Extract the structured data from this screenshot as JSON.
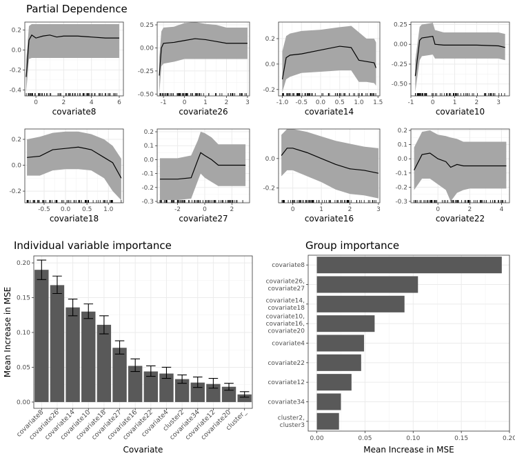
{
  "pd_title": "Partial Dependence",
  "imp_title": "Individual variable importance",
  "grp_title": "Group importance",
  "chart_data": [
    {
      "type": "line",
      "title": "Partial Dependence",
      "panels": [
        {
          "xlabel": "covariate8",
          "xlim": [
            -0.8,
            6.3
          ],
          "ylim": [
            -0.46,
            0.28
          ],
          "xticks": [
            0,
            2,
            4,
            6
          ],
          "xtick_labels": [
            "0",
            "2",
            "4",
            "6"
          ],
          "yticks": [
            -0.4,
            -0.2,
            0.0,
            0.2
          ],
          "ytick_labels": [
            "-0.4",
            "-0.2",
            "0.0",
            "0.2"
          ],
          "x": [
            -0.7,
            -0.5,
            -0.3,
            0,
            0.5,
            1,
            1.5,
            2,
            3,
            4,
            5,
            6
          ],
          "y": [
            -0.27,
            0.1,
            0.15,
            0.12,
            0.14,
            0.15,
            0.13,
            0.14,
            0.14,
            0.13,
            0.12,
            0.12
          ],
          "lower": [
            -0.42,
            -0.09,
            -0.08,
            -0.08,
            -0.08,
            -0.08,
            -0.08,
            -0.08,
            -0.08,
            -0.08,
            -0.08,
            -0.08
          ],
          "upper": [
            -0.1,
            0.24,
            0.26,
            0.26,
            0.26,
            0.26,
            0.26,
            0.26,
            0.26,
            0.26,
            0.26,
            0.26
          ]
        },
        {
          "xlabel": "covariate26",
          "xlim": [
            -1.3,
            3.1
          ],
          "ylim": [
            -0.52,
            0.28
          ],
          "xticks": [
            -1,
            0,
            1,
            2,
            3
          ],
          "xtick_labels": [
            "-1",
            "0",
            "1",
            "2",
            "3"
          ],
          "yticks": [
            -0.5,
            -0.25,
            0.0,
            0.25
          ],
          "ytick_labels": [
            "-0.50",
            "-0.25",
            "0.00",
            "0.25"
          ],
          "x": [
            -1.2,
            -1.1,
            -1,
            -0.5,
            0,
            0.5,
            1,
            1.5,
            2,
            3
          ],
          "y": [
            -0.3,
            0.0,
            0.05,
            0.06,
            0.08,
            0.1,
            0.09,
            0.07,
            0.05,
            0.05
          ],
          "lower": [
            -0.5,
            -0.2,
            -0.17,
            -0.15,
            -0.12,
            -0.12,
            -0.12,
            -0.12,
            -0.12,
            -0.12
          ],
          "upper": [
            -0.1,
            0.18,
            0.22,
            0.23,
            0.27,
            0.28,
            0.26,
            0.25,
            0.22,
            0.22
          ]
        },
        {
          "xlabel": "covariate14",
          "xlim": [
            -1.1,
            1.55
          ],
          "ylim": [
            -0.25,
            0.33
          ],
          "xticks": [
            -1,
            -0.5,
            0,
            0.5,
            1,
            1.5
          ],
          "xtick_labels": [
            "-1.0",
            "-0.5",
            "0.0",
            "0.5",
            "1.0",
            "1.5"
          ],
          "yticks": [
            -0.2,
            0.0,
            0.2
          ],
          "ytick_labels": [
            "-0.2",
            "0.0",
            "0.2"
          ],
          "x": [
            -1.0,
            -0.9,
            -0.8,
            -0.5,
            0,
            0.5,
            0.8,
            1.0,
            1.2,
            1.4,
            1.45
          ],
          "y": [
            -0.12,
            0.05,
            0.07,
            0.08,
            0.11,
            0.14,
            0.13,
            0.03,
            0.02,
            0.01,
            -0.03
          ],
          "lower": [
            -0.22,
            -0.12,
            -0.1,
            -0.07,
            -0.06,
            -0.05,
            -0.05,
            -0.14,
            -0.14,
            -0.15,
            -0.17
          ],
          "upper": [
            0.1,
            0.22,
            0.24,
            0.26,
            0.27,
            0.29,
            0.3,
            0.25,
            0.2,
            0.2,
            0.17
          ]
        },
        {
          "xlabel": "covariate10",
          "xlim": [
            -1.0,
            3.5
          ],
          "ylim": [
            -0.65,
            0.28
          ],
          "xticks": [
            -1,
            0,
            1,
            2,
            3
          ],
          "xtick_labels": [
            "-1",
            "0",
            "1",
            "2",
            "3"
          ],
          "yticks": [
            -0.5,
            -0.25,
            0.0,
            0.25
          ],
          "ytick_labels": [
            "-0.50",
            "-0.25",
            "0.00",
            "0.25"
          ],
          "x": [
            -0.8,
            -0.6,
            -0.5,
            0,
            0.1,
            0.5,
            1,
            2,
            3,
            3.3
          ],
          "y": [
            -0.4,
            0.05,
            0.08,
            0.1,
            0.0,
            -0.01,
            -0.01,
            -0.01,
            -0.02,
            -0.04
          ],
          "lower": [
            -0.6,
            -0.2,
            -0.15,
            -0.13,
            -0.18,
            -0.18,
            -0.18,
            -0.18,
            -0.18,
            -0.2
          ],
          "upper": [
            -0.2,
            0.22,
            0.25,
            0.27,
            0.18,
            0.15,
            0.15,
            0.15,
            0.15,
            0.13
          ]
        },
        {
          "xlabel": "covariate18",
          "xlim": [
            -0.95,
            1.35
          ],
          "ylim": [
            -0.29,
            0.28
          ],
          "xticks": [
            -0.5,
            0,
            0.5,
            1.0
          ],
          "xtick_labels": [
            "-0.5",
            "0.0",
            "0.5",
            "1.0"
          ],
          "yticks": [
            -0.2,
            0.0,
            0.2
          ],
          "ytick_labels": [
            "-0.2",
            "0.0",
            "0.2"
          ],
          "x": [
            -0.9,
            -0.6,
            -0.3,
            0,
            0.3,
            0.6,
            0.9,
            1.1,
            1.3
          ],
          "y": [
            0.06,
            0.07,
            0.12,
            0.13,
            0.14,
            0.12,
            0.06,
            0.02,
            -0.1
          ],
          "lower": [
            -0.08,
            -0.08,
            -0.04,
            -0.03,
            -0.03,
            -0.04,
            -0.1,
            -0.2,
            -0.27
          ],
          "upper": [
            0.2,
            0.22,
            0.25,
            0.26,
            0.26,
            0.24,
            0.2,
            0.15,
            0.05
          ]
        },
        {
          "xlabel": "covariate27",
          "xlim": [
            -3.5,
            3.3
          ],
          "ylim": [
            -0.31,
            0.22
          ],
          "xticks": [
            -2,
            0,
            2
          ],
          "xtick_labels": [
            "-2",
            "0",
            "2"
          ],
          "yticks": [
            -0.3,
            -0.2,
            -0.1,
            0.0,
            0.1,
            0.2
          ],
          "ytick_labels": [
            "-0.3",
            "-0.2",
            "-0.1",
            "0.0",
            "0.1",
            "0.2"
          ],
          "x": [
            -3.3,
            -2,
            -1,
            -0.5,
            -0.3,
            0,
            0.5,
            1,
            2,
            3
          ],
          "y": [
            -0.14,
            -0.14,
            -0.13,
            0.0,
            0.05,
            0.03,
            0.0,
            -0.04,
            -0.04,
            -0.04
          ],
          "lower": [
            -0.29,
            -0.29,
            -0.28,
            -0.15,
            -0.1,
            -0.13,
            -0.16,
            -0.19,
            -0.19,
            -0.19
          ],
          "upper": [
            0.01,
            0.01,
            0.03,
            0.14,
            0.2,
            0.19,
            0.16,
            0.11,
            0.11,
            0.11
          ]
        },
        {
          "xlabel": "covariate16",
          "xlim": [
            -0.5,
            3.05
          ],
          "ylim": [
            -0.3,
            0.2
          ],
          "xticks": [
            0,
            1,
            2,
            3
          ],
          "xtick_labels": [
            "0",
            "1",
            "2",
            "3"
          ],
          "yticks": [
            -0.2,
            0.0
          ],
          "ytick_labels": [
            "-0.2",
            "0.0"
          ],
          "x": [
            -0.4,
            -0.2,
            0,
            0.5,
            1,
            1.5,
            2,
            2.5,
            3
          ],
          "y": [
            0.02,
            0.07,
            0.07,
            0.04,
            0.0,
            -0.04,
            -0.07,
            -0.08,
            -0.1
          ],
          "lower": [
            -0.12,
            -0.08,
            -0.08,
            -0.12,
            -0.16,
            -0.21,
            -0.24,
            -0.25,
            -0.27
          ],
          "upper": [
            0.16,
            0.2,
            0.2,
            0.18,
            0.15,
            0.12,
            0.1,
            0.08,
            0.07
          ]
        },
        {
          "xlabel": "covariate22",
          "xlim": [
            -1.7,
            4.5
          ],
          "ylim": [
            -0.31,
            0.21
          ],
          "xticks": [
            0,
            2,
            4
          ],
          "xtick_labels": [
            "0",
            "2",
            "4"
          ],
          "yticks": [
            -0.3,
            -0.2,
            -0.1,
            0.0,
            0.1,
            0.2
          ],
          "ytick_labels": [
            "-0.3",
            "-0.2",
            "-0.1",
            "0.0",
            "0.1",
            "0.2"
          ],
          "x": [
            -1.5,
            -1.0,
            -0.5,
            0,
            0.5,
            0.8,
            1.2,
            1.6,
            2,
            3,
            4.3
          ],
          "y": [
            -0.08,
            0.03,
            0.04,
            0.0,
            -0.02,
            -0.06,
            -0.04,
            -0.05,
            -0.05,
            -0.05,
            -0.05
          ],
          "lower": [
            -0.22,
            -0.14,
            -0.14,
            -0.18,
            -0.22,
            -0.3,
            -0.24,
            -0.22,
            -0.21,
            -0.21,
            -0.21
          ],
          "upper": [
            0.08,
            0.19,
            0.2,
            0.17,
            0.16,
            0.15,
            0.14,
            0.12,
            0.12,
            0.12,
            0.12
          ]
        }
      ]
    },
    {
      "type": "bar",
      "title": "Individual variable importance",
      "xlabel": "Covariate",
      "ylabel": "Mean Increase in MSE",
      "ylim": [
        -0.009,
        0.21
      ],
      "yticks": [
        0.0,
        0.05,
        0.1,
        0.15,
        0.2
      ],
      "ytick_labels": [
        "0.00",
        "0.05",
        "0.10",
        "0.15",
        "0.20"
      ],
      "categories": [
        "covariate8",
        "covariate26",
        "covariate14",
        "covariate10",
        "covariate18",
        "covariate27",
        "covariate16",
        "covariate22",
        "covariate4",
        "cluster2",
        "covariate34",
        "covariate12",
        "covariate20",
        "cluster_"
      ],
      "values": [
        0.19,
        0.168,
        0.136,
        0.13,
        0.111,
        0.078,
        0.052,
        0.044,
        0.041,
        0.033,
        0.028,
        0.026,
        0.022,
        0.011
      ],
      "err_low": [
        0.176,
        0.156,
        0.124,
        0.12,
        0.098,
        0.069,
        0.044,
        0.037,
        0.034,
        0.027,
        0.021,
        0.02,
        0.017,
        0.007
      ],
      "err_high": [
        0.204,
        0.181,
        0.148,
        0.141,
        0.124,
        0.088,
        0.062,
        0.052,
        0.05,
        0.039,
        0.036,
        0.034,
        0.027,
        0.015
      ]
    },
    {
      "type": "bar",
      "orientation": "horizontal",
      "title": "Group importance",
      "xlabel": "Mean Increase in MSE",
      "xlim": [
        -0.009,
        0.2
      ],
      "xticks": [
        0.0,
        0.05,
        0.1,
        0.15,
        0.2
      ],
      "xtick_labels": [
        "0.00",
        "0.05",
        "0.10",
        "0.15",
        "0.20"
      ],
      "categories": [
        [
          "covariate8"
        ],
        [
          "covariate26,",
          "covariate27"
        ],
        [
          "covariate14,",
          "covariate18"
        ],
        [
          "covariate10,",
          "covariate16,",
          "covariate20"
        ],
        [
          "covariate4"
        ],
        [
          "covariate22"
        ],
        [
          "covariate12"
        ],
        [
          "covariate34"
        ],
        [
          "cluster2,",
          "cluster3"
        ]
      ],
      "values": [
        0.192,
        0.105,
        0.091,
        0.06,
        0.049,
        0.046,
        0.036,
        0.025,
        0.023
      ]
    }
  ]
}
